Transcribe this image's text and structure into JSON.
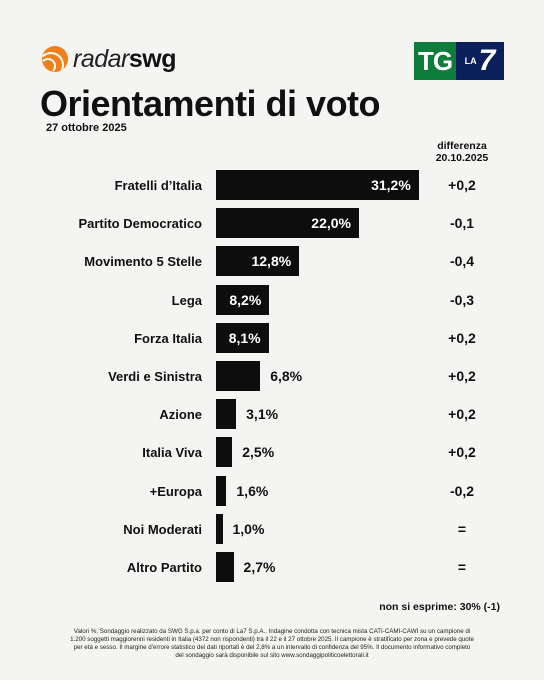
{
  "header": {
    "brand_light": "radar",
    "brand_bold": "swg",
    "tv_logo_left": "TG",
    "tv_logo_la": "LA",
    "tv_logo_num": "7",
    "title": "Orientamenti di voto",
    "date": "27 ottobre 2025",
    "diff_header_line1": "differenza",
    "diff_header_line2": "20.10.2025"
  },
  "chart_data": {
    "type": "bar",
    "orientation": "horizontal",
    "title": "Orientamenti di voto",
    "categories": [
      "Fratelli d’Italia",
      "Partito Democratico",
      "Movimento 5 Stelle",
      "Lega",
      "Forza Italia",
      "Verdi e Sinistra",
      "Azione",
      "Italia Viva",
      "+Europa",
      "Noi Moderati",
      "Altro Partito"
    ],
    "values": [
      31.2,
      22.0,
      12.8,
      8.2,
      8.1,
      6.8,
      3.1,
      2.5,
      1.6,
      1.0,
      2.7
    ],
    "value_labels": [
      "31,2%",
      "22,0%",
      "12,8%",
      "8,2%",
      "8,1%",
      "6,8%",
      "3,1%",
      "2,5%",
      "1,6%",
      "1,0%",
      "2,7%"
    ],
    "differences": [
      "+0,2",
      "-0,1",
      "-0,4",
      "-0,3",
      "+0,2",
      "+0,2",
      "+0,2",
      "+0,2",
      "-0,2",
      "=",
      "="
    ],
    "bar_color": "#0d0d0d",
    "grid": false
  },
  "non_esprime": "non si esprime: 30% (-1)",
  "footnote": "Valori %. Sondaggio realizzato da SWG S.p.a. per conto di La7 S.p.A.. Indagine condotta con tecnica mista CATI-CAMI-CAWI su un campione di 1.200 soggetti maggiorenni residenti in Italia (4372 non rispondenti) tra il 22 e il 27 ottobre 2025. Il campione è stratificato per zona e prevede quote per età e sesso. Il margine d'errore statistico dei dati riportati è del 2,8% a un intervallo di confidenza del 95%. Il documento informativo completo del sondaggio sarà disponibile sul sito www.sondaggipoliticoelettorali.it"
}
